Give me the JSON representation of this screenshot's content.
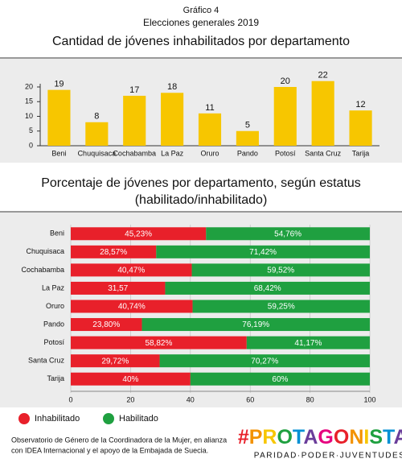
{
  "header": {
    "label": "Gráfico 4",
    "subtitle": "Elecciones generales 2019"
  },
  "chart_data": [
    {
      "type": "bar",
      "title": "Cantidad de jóvenes inhabilitados por departamento",
      "categories": [
        "Beni",
        "Chuquisaca",
        "Cochabamba",
        "La Paz",
        "Oruro",
        "Pando",
        "Potosí",
        "Santa Cruz",
        "Tarija"
      ],
      "values": [
        19,
        8,
        17,
        18,
        11,
        5,
        20,
        22,
        12
      ],
      "color": "#f7c600",
      "ylim": [
        0,
        20
      ],
      "yticks": [
        0,
        5,
        10,
        15,
        20
      ],
      "grid": false
    },
    {
      "type": "hbar_stacked",
      "title": "Porcentaje de jóvenes por departamento, según estatus",
      "subtitle": "(habilitado/inhabilitado)",
      "categories": [
        "Beni",
        "Chuquisaca",
        "Cochabamba",
        "La Paz",
        "Oruro",
        "Pando",
        "Potosí",
        "Santa Cruz",
        "Tarija"
      ],
      "series": [
        {
          "name": "Inhabilitado",
          "color": "#e8202a",
          "values": [
            45.23,
            28.57,
            40.47,
            31.57,
            40.74,
            23.8,
            58.82,
            29.72,
            40
          ],
          "value_labels": [
            "45,23%",
            "28,57%",
            "40,47%",
            "31,57",
            "40,74%",
            "23,80%",
            "58,82%",
            "29,72%",
            "40%"
          ]
        },
        {
          "name": "Habilitado",
          "color": "#1fa040",
          "values": [
            54.76,
            71.42,
            59.52,
            68.42,
            59.25,
            76.19,
            41.17,
            70.27,
            60
          ],
          "value_labels": [
            "54,76%",
            "71,42%",
            "59,52%",
            "68,42%",
            "59,25%",
            "76,19%",
            "41,17%",
            "70,27%",
            "60%"
          ]
        }
      ],
      "xlim": [
        0,
        100
      ],
      "xticks": [
        0,
        20,
        40,
        60,
        80,
        100
      ],
      "grid": true,
      "legend": "bottom-left"
    }
  ],
  "footer": {
    "lines": [
      "Observatorio de Género de la Coordinadora de la Mujer, en alianza",
      "con IDEA Internacional y el apoyo de la Embajada de Suecia."
    ],
    "logo": "#PROTAGONISTAS",
    "tagline": "PARIDAD·PODER·JUVENTUDES"
  }
}
